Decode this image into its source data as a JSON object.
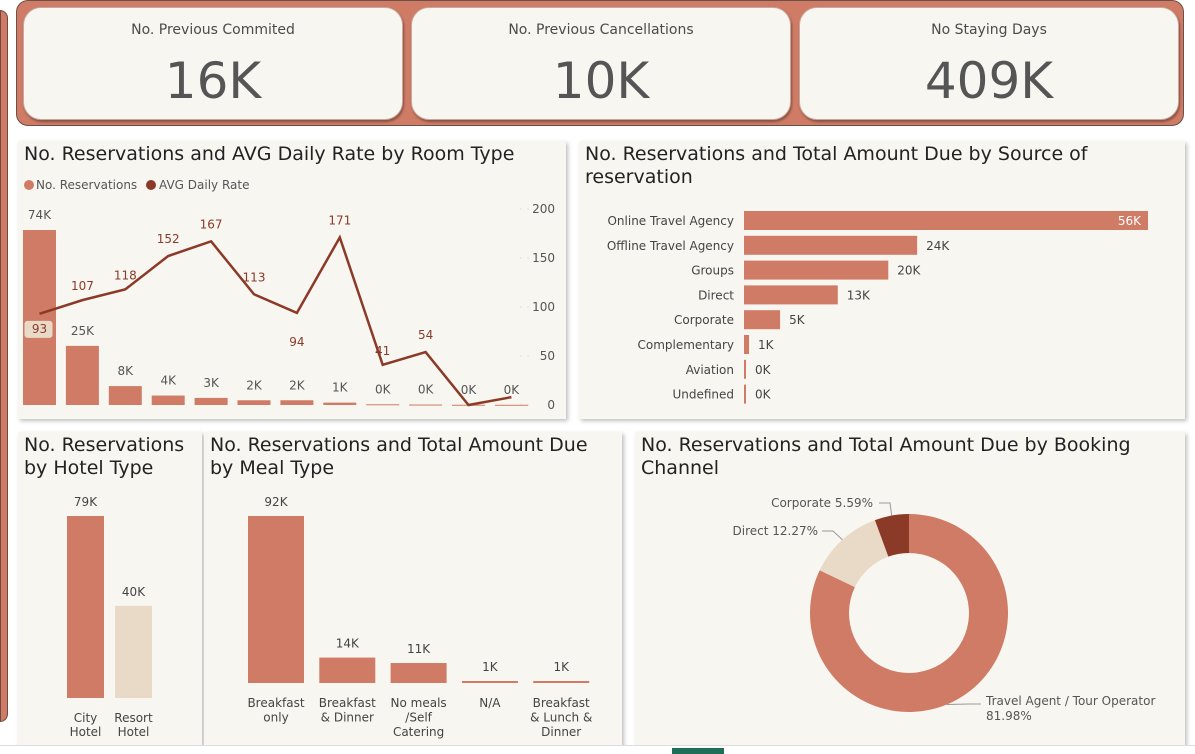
{
  "kpis": [
    {
      "label": "No. Previous Commited",
      "value": "16K"
    },
    {
      "label": "No. Previous Cancellations",
      "value": "10K"
    },
    {
      "label": "No Staying Days",
      "value": "409K"
    }
  ],
  "colors": {
    "primary": "#cf7b65",
    "dark": "#8b3a28",
    "light": "#e9dac7",
    "panel": "#f8f6f1",
    "active_tab": "#1f6f58"
  },
  "chart_data": [
    {
      "type": "bar",
      "title": "No. Reservations and AVG Daily Rate by Room Type",
      "legend": [
        "No. Reservations",
        "AVG Daily Rate"
      ],
      "legend_position": "top-left",
      "series": [
        {
          "name": "No. Reservations",
          "type": "bar",
          "values": [
            74,
            25,
            8,
            4,
            3,
            2,
            2,
            1,
            0.3,
            0.2,
            0.1,
            0.1
          ],
          "labels": [
            "74K",
            "25K",
            "8K",
            "4K",
            "3K",
            "2K",
            "2K",
            "1K",
            "0K",
            "0K",
            "0K",
            "0K"
          ]
        },
        {
          "name": "AVG Daily Rate",
          "type": "line",
          "values": [
            93,
            107,
            118,
            152,
            167,
            113,
            94,
            171,
            41,
            54,
            0,
            8
          ],
          "labels": [
            "93",
            "107",
            "118",
            "152",
            "167",
            "113",
            "94",
            "171",
            "41",
            "54",
            "",
            ""
          ]
        }
      ],
      "y2_ticks": [
        "200",
        "150",
        "100",
        "50",
        "0"
      ],
      "y2lim": [
        0,
        200
      ]
    },
    {
      "type": "bar",
      "orientation": "horizontal",
      "title": "No. Reservations and Total Amount Due by Source of reservation",
      "categories": [
        "Online Travel Agency",
        "Offline Travel Agency",
        "Groups",
        "Direct",
        "Corporate",
        "Complementary",
        "Aviation",
        "Undefined"
      ],
      "values": [
        56,
        24,
        20,
        13,
        5,
        0.7,
        0.2,
        0.01
      ],
      "labels": [
        "56K",
        "24K",
        "20K",
        "13K",
        "5K",
        "1K",
        "0K",
        "0K"
      ]
    },
    {
      "type": "bar",
      "title": "No. Reservations by Hotel Type",
      "categories": [
        "City Hotel",
        "Resort Hotel"
      ],
      "values": [
        79,
        40
      ],
      "labels": [
        "79K",
        "40K"
      ]
    },
    {
      "type": "bar",
      "title": "No. Reservations and Total Amount Due by Meal Type",
      "categories": [
        "Breakfast only",
        "Breakfast & Dinner",
        "No meals /Self Catering",
        "N/A",
        "Breakfast & Lunch & Dinner"
      ],
      "values": [
        92,
        14,
        11,
        1,
        1
      ],
      "labels": [
        "92K",
        "14K",
        "11K",
        "1K",
        "1K"
      ]
    },
    {
      "type": "pie",
      "title": "No. Reservations and Total Amount Due by Booking Channel",
      "slices": [
        {
          "name": "Travel Agent / Tour Operator",
          "value": 81.98,
          "label": "81.98%"
        },
        {
          "name": "Direct",
          "value": 12.27,
          "label": "12.27%"
        },
        {
          "name": "Corporate",
          "value": 5.59,
          "label": "5.59%"
        }
      ]
    }
  ]
}
